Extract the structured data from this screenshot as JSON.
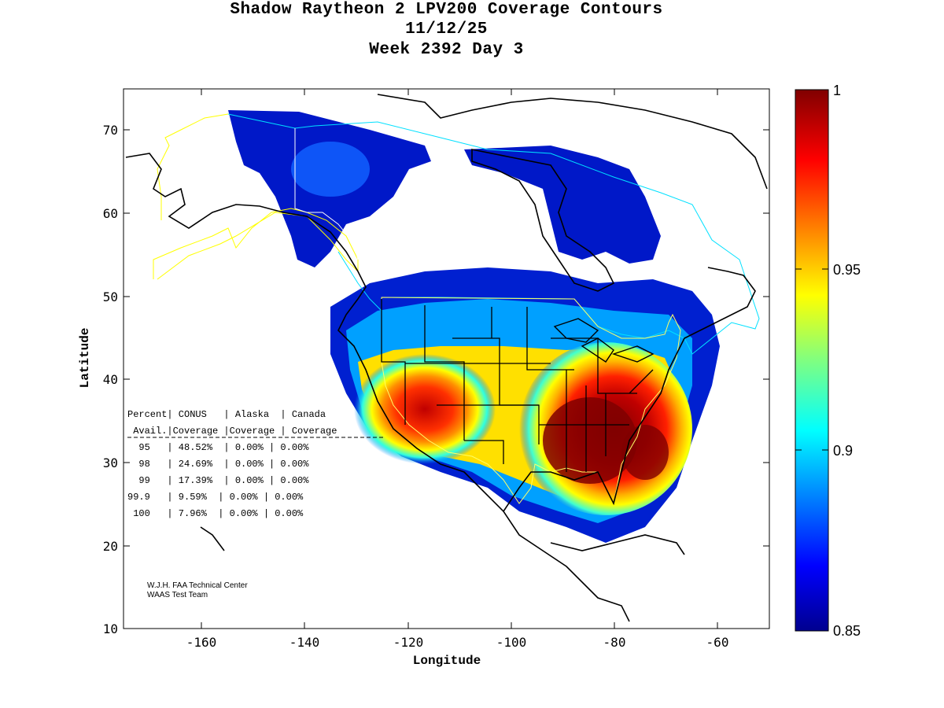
{
  "title": {
    "line1": "Shadow Raytheon 2 LPV200 Coverage Contours",
    "line2": "11/12/25",
    "line3": "Week 2392 Day 3"
  },
  "axes": {
    "xlabel": "Longitude",
    "ylabel": "Latitude",
    "xticks": [
      "-160",
      "-140",
      "-120",
      "-100",
      "-80",
      "-60"
    ],
    "yticks": [
      "70",
      "60",
      "50",
      "40",
      "30",
      "20",
      "10"
    ]
  },
  "colorbar": {
    "labels": [
      "1",
      "0.95",
      "0.9",
      "0.85"
    ]
  },
  "stats_table": {
    "header1": "Percent| CONUS   | Alaska  | Canada",
    "header2": " Avail.|Coverage |Coverage | Coverage",
    "rows": [
      "  95   | 48.52%  | 0.00% | 0.00%",
      "  98   | 24.69%  | 0.00% | 0.00%",
      "  99   | 17.39%  | 0.00% | 0.00%",
      "99.9   | 9.59%  | 0.00% | 0.00%",
      " 100   | 7.96%  | 0.00% | 0.00%"
    ]
  },
  "credits": {
    "line1": "W.J.H. FAA Technical Center",
    "line2": "WAAS Test Team"
  },
  "chart_data": {
    "type": "heatmap",
    "title": "Shadow Raytheon 2 LPV200 Coverage Contours",
    "xlabel": "Longitude",
    "ylabel": "Latitude",
    "xlim": [
      -175,
      -50
    ],
    "ylim": [
      10,
      75
    ],
    "color_range": [
      0.85,
      1
    ],
    "colormap": "jet",
    "coverage_percent": {
      "95": {
        "CONUS": "48.52%",
        "Alaska": "0.00%",
        "Canada": "0.00%"
      },
      "98": {
        "CONUS": "24.69%",
        "Alaska": "0.00%",
        "Canada": "0.00%"
      },
      "99": {
        "CONUS": "17.39%",
        "Alaska": "0.00%",
        "Canada": "0.00%"
      },
      "99.9": {
        "CONUS": "9.59%",
        "Alaska": "0.00%",
        "Canada": "0.00%"
      },
      "100": {
        "CONUS": "7.96%",
        "Alaska": "0.00%",
        "Canada": "0.00%"
      }
    }
  }
}
